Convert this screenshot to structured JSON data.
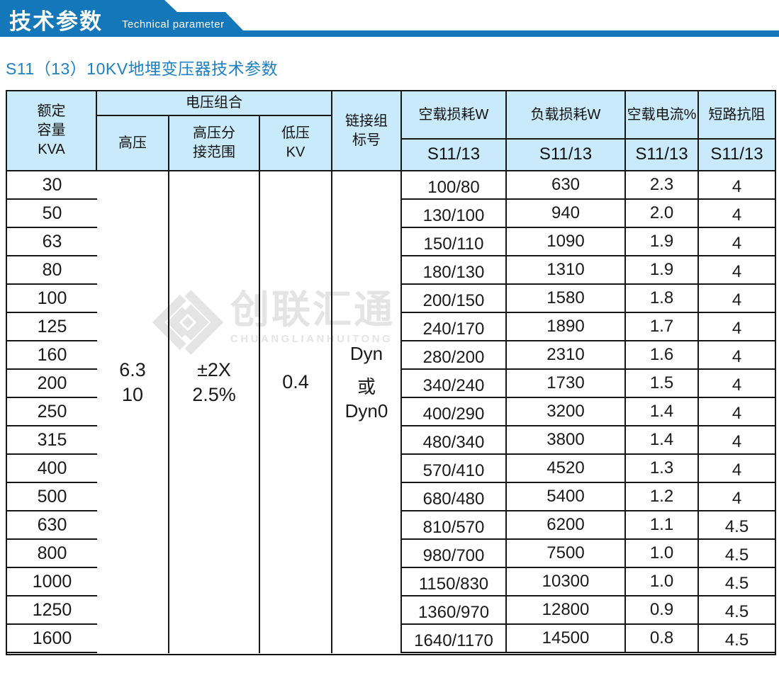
{
  "banner": {
    "title_cn": "技术参数",
    "title_en": "Technical parameter"
  },
  "section_title": "S11（13）10KV地埋变压器技术参数",
  "colors": {
    "banner_blue": "#1377b9",
    "subtitle_blue": "#1d80c3",
    "header_bg": "#c9eafa",
    "border": "#161616",
    "watermark_gray": "#e4e4e4"
  },
  "watermark": {
    "logo": "diamond-logo",
    "name_cn": "创联汇通",
    "name_en": "CHUANGLIANHUITONG"
  },
  "table": {
    "header": {
      "rated_capacity": [
        "额定",
        "容量",
        "KVA"
      ],
      "voltage_group": "电压组合",
      "hv": "高压",
      "hv_tap": [
        "高压分",
        "接范围"
      ],
      "lv": [
        "低压",
        "KV"
      ],
      "vector_group": [
        "链接组",
        "标号"
      ],
      "no_load_loss": "空载损耗W",
      "load_loss": "负载损耗W",
      "no_load_current": "空载电流%",
      "impedance": "短路抗阻",
      "model": "S11/13"
    },
    "merged": {
      "hv_values": [
        "6.3",
        "10"
      ],
      "tap_values": [
        "±2X",
        "2.5%"
      ],
      "lv_value": "0.4",
      "vector_values": [
        "Dyn",
        "或",
        "Dyn0"
      ]
    },
    "rows": [
      {
        "kva": "30",
        "no_load": "100/80",
        "load": "630",
        "current": "2.3",
        "impedance": "4"
      },
      {
        "kva": "50",
        "no_load": "130/100",
        "load": "940",
        "current": "2.0",
        "impedance": "4"
      },
      {
        "kva": "63",
        "no_load": "150/110",
        "load": "1090",
        "current": "1.9",
        "impedance": "4"
      },
      {
        "kva": "80",
        "no_load": "180/130",
        "load": "1310",
        "current": "1.9",
        "impedance": "4"
      },
      {
        "kva": "100",
        "no_load": "200/150",
        "load": "1580",
        "current": "1.8",
        "impedance": "4"
      },
      {
        "kva": "125",
        "no_load": "240/170",
        "load": "1890",
        "current": "1.7",
        "impedance": "4"
      },
      {
        "kva": "160",
        "no_load": "280/200",
        "load": "2310",
        "current": "1.6",
        "impedance": "4"
      },
      {
        "kva": "200",
        "no_load": "340/240",
        "load": "1730",
        "current": "1.5",
        "impedance": "4"
      },
      {
        "kva": "250",
        "no_load": "400/290",
        "load": "3200",
        "current": "1.4",
        "impedance": "4"
      },
      {
        "kva": "315",
        "no_load": "480/340",
        "load": "3800",
        "current": "1.4",
        "impedance": "4"
      },
      {
        "kva": "400",
        "no_load": "570/410",
        "load": "4520",
        "current": "1.3",
        "impedance": "4"
      },
      {
        "kva": "500",
        "no_load": "680/480",
        "load": "5400",
        "current": "1.2",
        "impedance": "4"
      },
      {
        "kva": "630",
        "no_load": "810/570",
        "load": "6200",
        "current": "1.1",
        "impedance": "4.5"
      },
      {
        "kva": "800",
        "no_load": "980/700",
        "load": "7500",
        "current": "1.0",
        "impedance": "4.5"
      },
      {
        "kva": "1000",
        "no_load": "1150/830",
        "load": "10300",
        "current": "1.0",
        "impedance": "4.5"
      },
      {
        "kva": "1250",
        "no_load": "1360/970",
        "load": "12800",
        "current": "0.9",
        "impedance": "4.5"
      },
      {
        "kva": "1600",
        "no_load": "1640/1170",
        "load": "14500",
        "current": "0.8",
        "impedance": "4.5"
      }
    ]
  }
}
